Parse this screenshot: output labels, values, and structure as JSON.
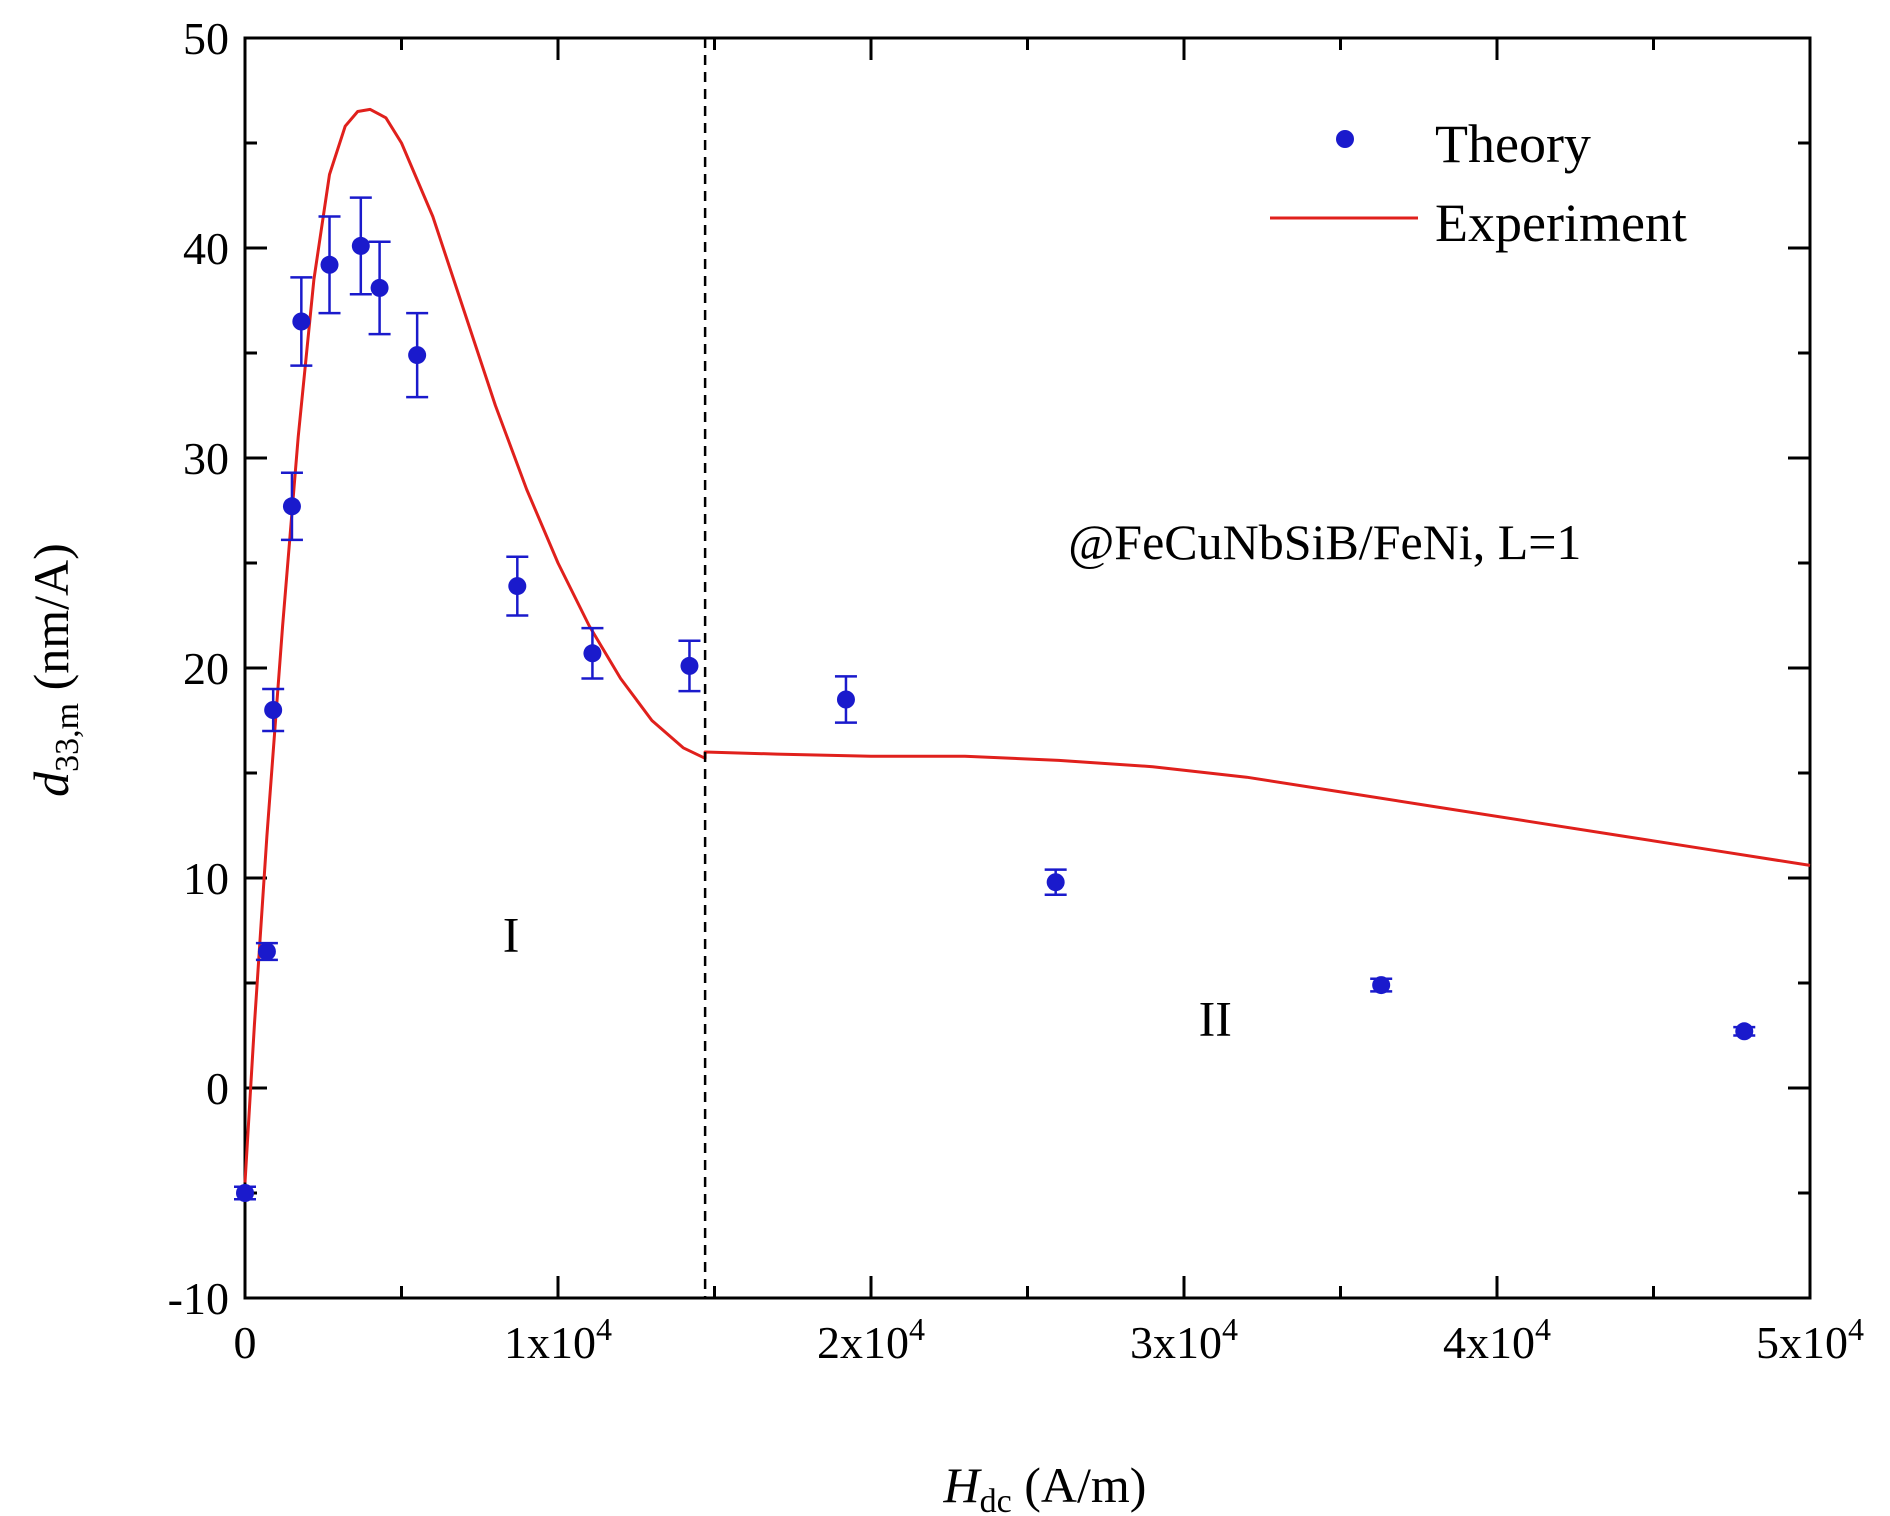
{
  "chart_data": {
    "type": "scatter",
    "title": "",
    "xlabel": {
      "symbol": "H",
      "subscript": "dc",
      "unit": " (A/m)"
    },
    "ylabel": {
      "symbol": "d",
      "subscript": "33,m",
      "unit": " (nm/A)"
    },
    "xlim": [
      0,
      50000
    ],
    "ylim": [
      -10,
      50
    ],
    "x_ticks": [
      {
        "value": 0,
        "base": "0",
        "exp": ""
      },
      {
        "value": 10000,
        "base": "1x10",
        "exp": "4"
      },
      {
        "value": 20000,
        "base": "2x10",
        "exp": "4"
      },
      {
        "value": 30000,
        "base": "3x10",
        "exp": "4"
      },
      {
        "value": 40000,
        "base": "4x10",
        "exp": "4"
      },
      {
        "value": 50000,
        "base": "5x10",
        "exp": "4"
      }
    ],
    "y_ticks": [
      {
        "value": -10,
        "label": "-10"
      },
      {
        "value": 0,
        "label": "0"
      },
      {
        "value": 10,
        "label": "10"
      },
      {
        "value": 20,
        "label": "20"
      },
      {
        "value": 30,
        "label": "30"
      },
      {
        "value": 40,
        "label": "40"
      },
      {
        "value": 50,
        "label": "50"
      }
    ],
    "grid": false,
    "legend_position": "top-right",
    "series": [
      {
        "name": "Theory",
        "kind": "scatter-errorbar",
        "color": "#1a1acc",
        "points": [
          {
            "x": 0,
            "y": -5.0,
            "err": 0.3
          },
          {
            "x": 700,
            "y": 6.5,
            "err": 0.4
          },
          {
            "x": 900,
            "y": 18.0,
            "err": 1.0
          },
          {
            "x": 1500,
            "y": 27.7,
            "err": 1.6
          },
          {
            "x": 1800,
            "y": 36.5,
            "err": 2.1
          },
          {
            "x": 2700,
            "y": 39.2,
            "err": 2.3
          },
          {
            "x": 3700,
            "y": 40.1,
            "err": 2.3
          },
          {
            "x": 4300,
            "y": 38.1,
            "err": 2.2
          },
          {
            "x": 5500,
            "y": 34.9,
            "err": 2.0
          },
          {
            "x": 8700,
            "y": 23.9,
            "err": 1.4
          },
          {
            "x": 11100,
            "y": 20.7,
            "err": 1.2
          },
          {
            "x": 14200,
            "y": 20.1,
            "err": 1.2
          },
          {
            "x": 19200,
            "y": 18.5,
            "err": 1.1
          },
          {
            "x": 25900,
            "y": 9.8,
            "err": 0.6
          },
          {
            "x": 36300,
            "y": 4.9,
            "err": 0.3
          },
          {
            "x": 47900,
            "y": 2.7,
            "err": 0.2
          }
        ]
      },
      {
        "name": "Experiment",
        "kind": "line",
        "color": "#e0201c",
        "x": [
          0,
          300,
          700,
          1200,
          1700,
          2200,
          2700,
          3200,
          3600,
          4000,
          4500,
          5000,
          6000,
          7000,
          8000,
          9000,
          10000,
          11000,
          12000,
          13000,
          14000,
          14700,
          14700,
          17000,
          20000,
          23000,
          26000,
          29000,
          32000,
          35000,
          38000,
          41000,
          44000,
          47000,
          50000
        ],
        "y": [
          -4.5,
          3.0,
          12.0,
          22.0,
          31.0,
          38.5,
          43.5,
          45.8,
          46.5,
          46.6,
          46.2,
          45.0,
          41.5,
          37.0,
          32.5,
          28.5,
          25.0,
          22.0,
          19.5,
          17.5,
          16.2,
          15.7,
          16.0,
          15.9,
          15.8,
          15.8,
          15.6,
          15.3,
          14.8,
          14.1,
          13.4,
          12.7,
          12.0,
          11.3,
          10.6
        ]
      }
    ],
    "divider": {
      "x": 14700,
      "style": "dashed"
    },
    "annotations": [
      {
        "text": "I",
        "x": 8500,
        "y": 6.5
      },
      {
        "text": "II",
        "x": 31000,
        "y": 2.5
      },
      {
        "text": "@FeCuNbSiB/FeNi, L=1",
        "x": 34500,
        "y": 25.2
      }
    ]
  }
}
